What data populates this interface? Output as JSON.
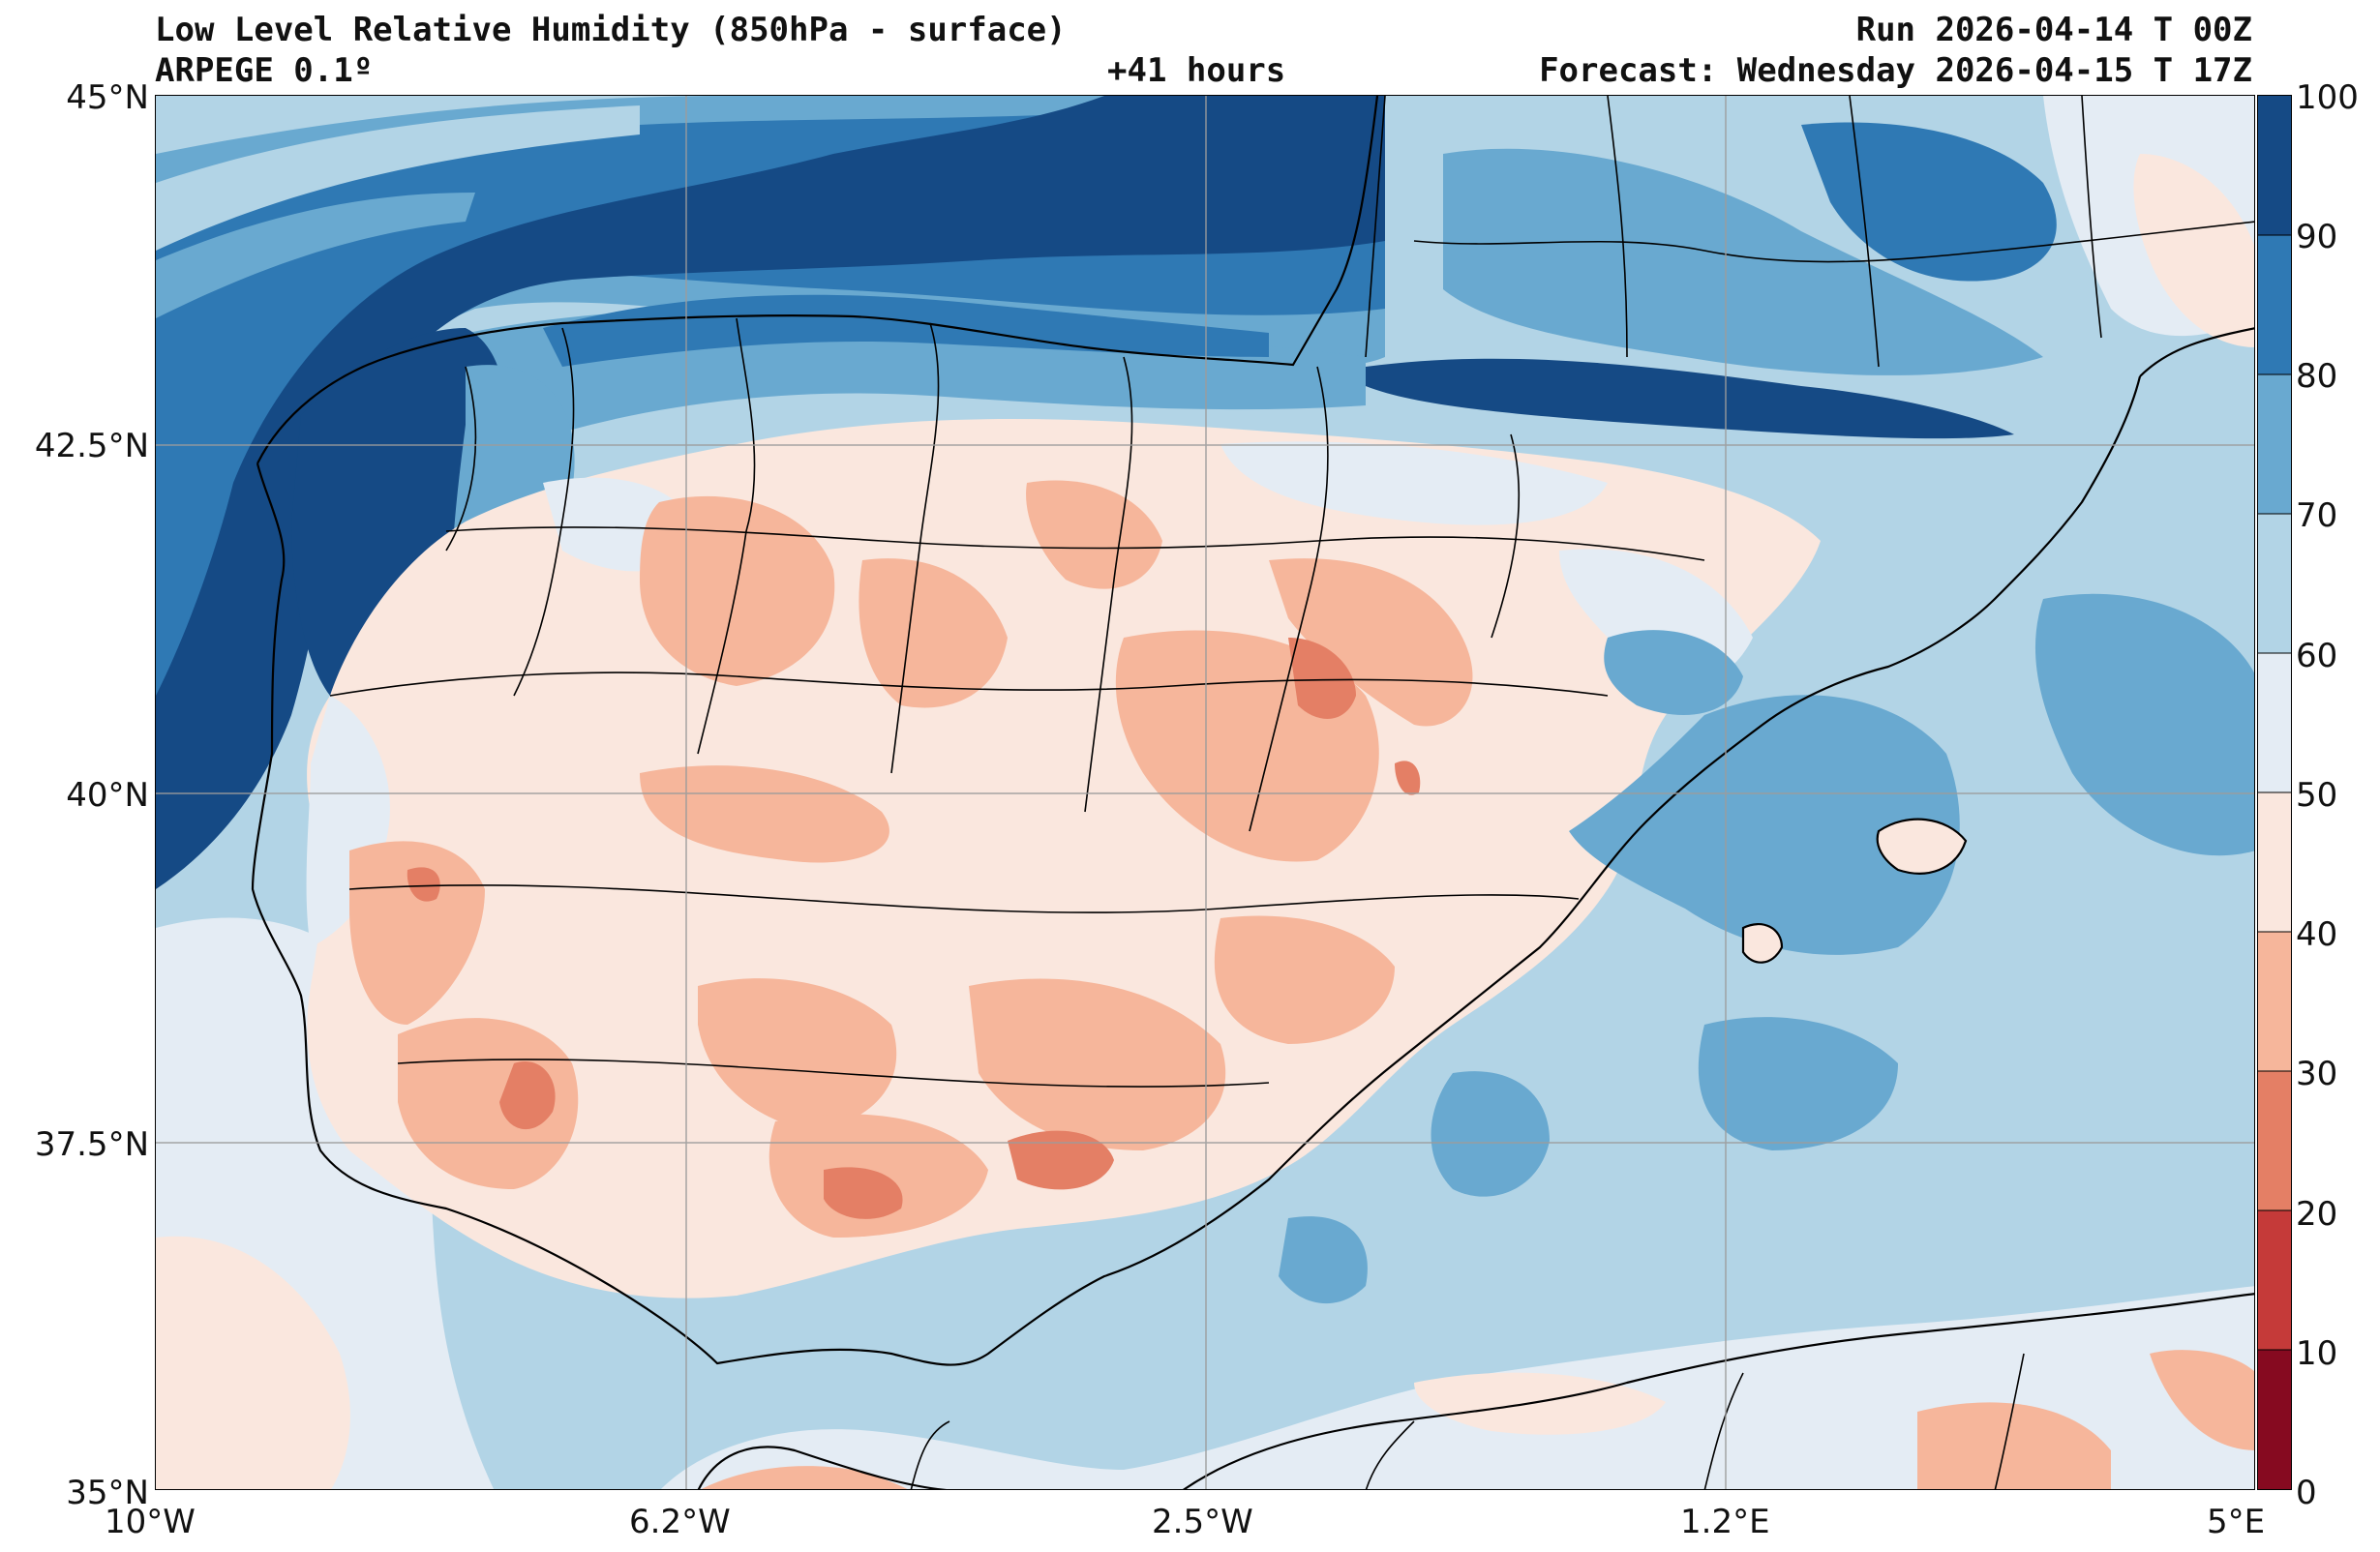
{
  "header": {
    "title": "Low Level Relative Humidity (850hPa - surface)",
    "model": "ARPEGE 0.1º",
    "lead_time": "+41 hours",
    "run": "Run 2026-04-14 T 00Z",
    "forecast": "Forecast: Wednesday 2026-04-15 T 17Z"
  },
  "map": {
    "lat_labels": [
      "45°N",
      "42.5°N",
      "40°N",
      "37.5°N",
      "35°N"
    ],
    "lon_labels": [
      "10°W",
      "6.2°W",
      "2.5°W",
      "1.2°E",
      "5°E"
    ],
    "lat_range": [
      35,
      45
    ],
    "lon_range": [
      -10,
      5
    ],
    "gridlines": true
  },
  "colorbar": {
    "labels": [
      "100",
      "90",
      "80",
      "70",
      "60",
      "50",
      "40",
      "30",
      "20",
      "10",
      "0"
    ],
    "levels": [
      0,
      10,
      20,
      30,
      40,
      50,
      60,
      70,
      80,
      90,
      100
    ],
    "colors": [
      "#860a20",
      "#c53a39",
      "#e47f65",
      "#f6b69b",
      "#fae7de",
      "#e4ecf4",
      "#b2d4e6",
      "#69a9d0",
      "#2f79b4",
      "#154a85"
    ]
  }
}
